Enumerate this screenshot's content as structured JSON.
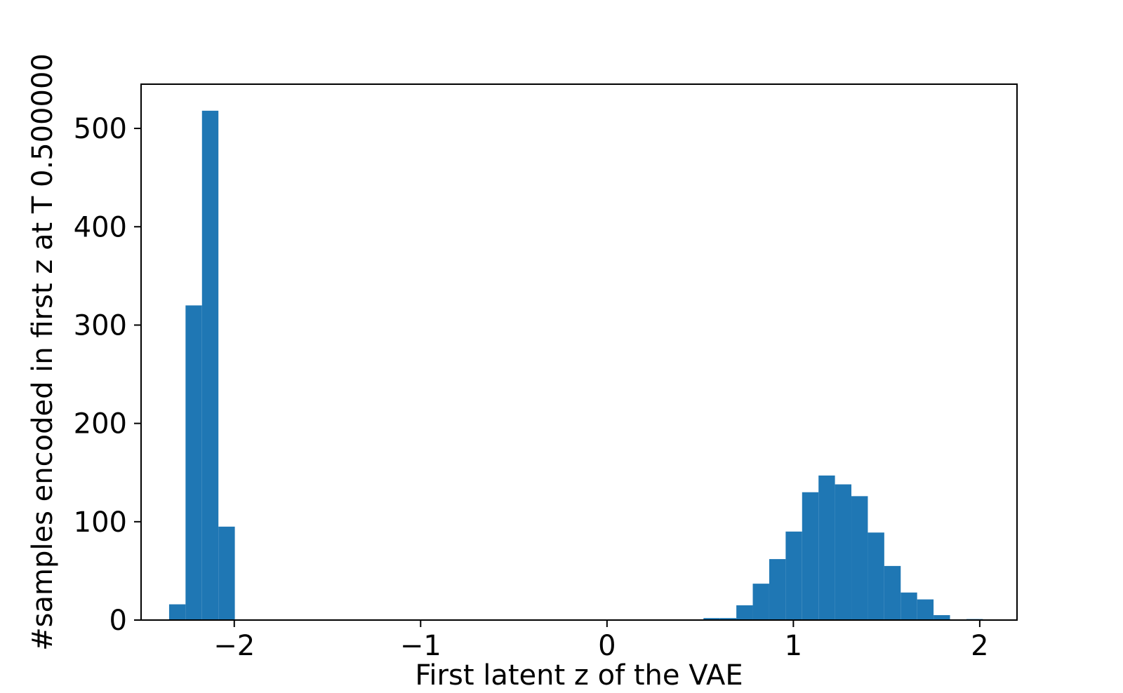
{
  "chart_data": {
    "type": "bar",
    "subtype": "histogram",
    "title": "",
    "xlabel": "First latent z of the VAE",
    "ylabel": "#samples encoded in first z at T 0.500000",
    "xlim": [
      -2.5,
      2.2
    ],
    "ylim": [
      0,
      545
    ],
    "xticks": [
      -2,
      -1,
      0,
      1,
      2
    ],
    "xtick_labels": [
      "−2",
      "−1",
      "0",
      "1",
      "2"
    ],
    "yticks": [
      0,
      100,
      200,
      300,
      400,
      500
    ],
    "ytick_labels": [
      "0",
      "100",
      "200",
      "300",
      "400",
      "500"
    ],
    "grid": false,
    "legend": "none",
    "color": "#1f77b4",
    "bins": [
      {
        "x0": -2.3496,
        "x1": -2.2614,
        "count": 16
      },
      {
        "x0": -2.2614,
        "x1": -2.1732,
        "count": 320
      },
      {
        "x0": -2.1732,
        "x1": -2.085,
        "count": 518
      },
      {
        "x0": -2.085,
        "x1": -1.9969,
        "count": 95
      },
      {
        "x0": 0.5177,
        "x1": 0.6059,
        "count": 2
      },
      {
        "x0": 0.6059,
        "x1": 0.6941,
        "count": 2
      },
      {
        "x0": 0.6941,
        "x1": 0.7822,
        "count": 15
      },
      {
        "x0": 0.7822,
        "x1": 0.8704,
        "count": 37
      },
      {
        "x0": 0.8704,
        "x1": 0.9586,
        "count": 62
      },
      {
        "x0": 0.9586,
        "x1": 1.0468,
        "count": 90
      },
      {
        "x0": 1.0468,
        "x1": 1.135,
        "count": 130
      },
      {
        "x0": 1.135,
        "x1": 1.2231,
        "count": 147
      },
      {
        "x0": 1.2231,
        "x1": 1.3113,
        "count": 138
      },
      {
        "x0": 1.3113,
        "x1": 1.3995,
        "count": 126
      },
      {
        "x0": 1.3995,
        "x1": 1.4877,
        "count": 89
      },
      {
        "x0": 1.4877,
        "x1": 1.5759,
        "count": 55
      },
      {
        "x0": 1.5759,
        "x1": 1.664,
        "count": 28
      },
      {
        "x0": 1.664,
        "x1": 1.7522,
        "count": 21
      },
      {
        "x0": 1.7522,
        "x1": 1.8404,
        "count": 5
      },
      {
        "x0": 1.8404,
        "x1": 1.9286,
        "count": 0
      },
      {
        "x0": 1.9286,
        "x1": 2.0168,
        "count": 1
      }
    ]
  }
}
